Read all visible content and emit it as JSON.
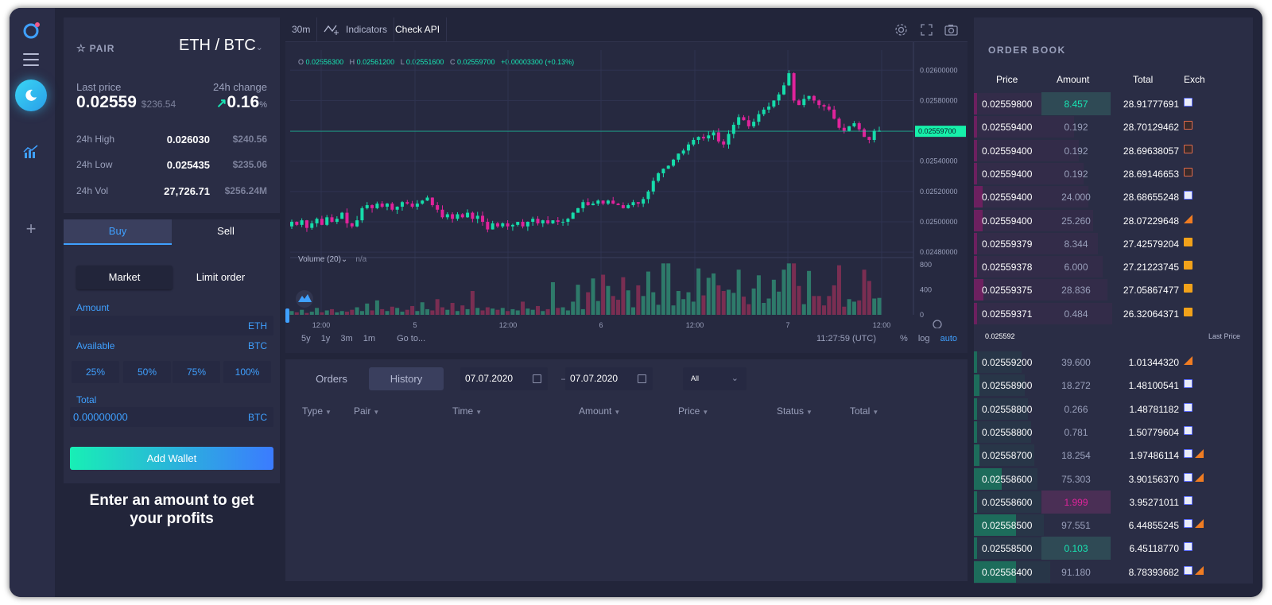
{
  "app": {
    "icons": {
      "logo": "circle-logo-icon",
      "menu": "hamburger-icon",
      "active": "moon-icon",
      "chart": "bar-chart-icon",
      "add": "plus-icon"
    }
  },
  "pair_panel": {
    "pair_label": "PAIR",
    "pair_name": "ETH / BTC",
    "last_price_label": "Last price",
    "last_price": "0.02559",
    "last_price_usd": "$236.54",
    "change_label": "24h change",
    "change_value": "0.16",
    "change_unit": "%",
    "stats": [
      {
        "label": "24h High",
        "value": "0.026030",
        "usd": "$240.56"
      },
      {
        "label": "24h Low",
        "value": "0.025435",
        "usd": "$235.06"
      },
      {
        "label": "24h Vol",
        "value": "27,726.71",
        "usd": "$256.24M"
      }
    ]
  },
  "order_form": {
    "tab_buy": "Buy",
    "tab_sell": "Sell",
    "market": "Market",
    "limit": "Limit order",
    "amount_label": "Amount",
    "amount_unit": "ETH",
    "available_label": "Available",
    "available_unit": "BTC",
    "percents": [
      "25%",
      "50%",
      "75%",
      "100%"
    ],
    "total_label": "Total",
    "total_value": "0.00000000",
    "total_unit": "BTC",
    "add_wallet": "Add Wallet"
  },
  "promo": {
    "line1": "Enter an amount to get",
    "line2": "your profits"
  },
  "chart_toolbar": {
    "interval": "30m",
    "indicators": "Indicators",
    "check_api": "Check API",
    "icons": [
      "settings-icon",
      "fullscreen-icon",
      "camera-icon"
    ]
  },
  "ohlc": {
    "o_label": "O",
    "o": "0.02556300",
    "h_label": "H",
    "h": "0.02561200",
    "l_label": "L",
    "l": "0.02551600",
    "c_label": "C",
    "c": "0.02559700",
    "change": "+0.00003300 (+0.13%)"
  },
  "chart_footer": {
    "ranges": [
      "5y",
      "1y",
      "3m",
      "1m"
    ],
    "goto": "Go to...",
    "time": "11:27:59 (UTC)",
    "scale_pct": "%",
    "scale_log": "log",
    "scale_auto": "auto"
  },
  "volume": {
    "label": "Volume (20)",
    "value": "n/a"
  },
  "chart_data": {
    "type": "candlestick",
    "price_axis": {
      "ticks": [
        "0.02600000",
        "0.02580000",
        "0.02560000",
        "0.02540000",
        "0.02520000",
        "0.02500000",
        "0.02480000"
      ],
      "ylim": [
        0.02478,
        0.02608
      ]
    },
    "volume_axis": {
      "ticks": [
        "800",
        "400",
        "0"
      ]
    },
    "x_ticks": [
      "12:00",
      "5",
      "12:00",
      "6",
      "12:00",
      "7",
      "12:00"
    ],
    "current_price": "0.02559700",
    "close": [
      0.025,
      0.02498,
      0.02501,
      0.02496,
      0.02499,
      0.02502,
      0.02498,
      0.02503,
      0.025,
      0.02502,
      0.02506,
      0.02499,
      0.02497,
      0.02501,
      0.02509,
      0.02511,
      0.02509,
      0.02512,
      0.0251,
      0.02512,
      0.02508,
      0.0251,
      0.02513,
      0.02512,
      0.0251,
      0.02512,
      0.02514,
      0.02516,
      0.02511,
      0.02508,
      0.02503,
      0.02505,
      0.02502,
      0.02505,
      0.02503,
      0.02506,
      0.02502,
      0.02504,
      0.025,
      0.02495,
      0.02499,
      0.02497,
      0.02499,
      0.02497,
      0.02498,
      0.025,
      0.02497,
      0.025,
      0.02502,
      0.02499,
      0.02501,
      0.02499,
      0.02501,
      0.025,
      0.025,
      0.02502,
      0.02506,
      0.02509,
      0.02513,
      0.02511,
      0.02512,
      0.02514,
      0.02512,
      0.02514,
      0.02512,
      0.02511,
      0.02509,
      0.02511,
      0.02513,
      0.02512,
      0.02515,
      0.0252,
      0.02527,
      0.02532,
      0.02535,
      0.02537,
      0.02541,
      0.02545,
      0.02547,
      0.02551,
      0.02554,
      0.02556,
      0.02555,
      0.02557,
      0.02559,
      0.02553,
      0.02551,
      0.02558,
      0.02564,
      0.02569,
      0.02567,
      0.02563,
      0.02566,
      0.02571,
      0.02574,
      0.02576,
      0.0258,
      0.02584,
      0.0259,
      0.02598,
      0.0258,
      0.02577,
      0.02581,
      0.02583,
      0.0258,
      0.02577,
      0.02576,
      0.02574,
      0.02568,
      0.02562,
      0.0256,
      0.02563,
      0.02565,
      0.02561,
      0.02556,
      0.02554,
      0.0256,
      0.0256
    ],
    "volume": [
      60,
      40,
      80,
      30,
      50,
      110,
      40,
      70,
      90,
      40,
      60,
      50,
      80,
      120,
      60,
      180,
      70,
      230,
      90,
      60,
      130,
      110,
      50,
      80,
      140,
      60,
      200,
      90,
      70,
      250,
      120,
      80,
      190,
      60,
      150,
      90,
      380,
      110,
      70,
      120,
      100,
      80,
      110,
      60,
      90,
      70,
      210,
      100,
      80,
      140,
      60,
      90,
      520,
      110,
      120,
      70,
      210,
      480,
      90,
      360,
      580,
      220,
      640,
      460,
      300,
      240,
      600,
      390,
      120,
      470,
      300,
      690,
      360,
      160,
      820,
      820,
      150,
      380,
      250,
      360,
      210,
      740,
      310,
      590,
      660,
      470,
      380,
      400,
      350,
      720,
      290,
      170,
      420,
      630,
      190,
      260,
      560,
      370,
      720,
      820,
      820,
      460,
      170,
      700,
      300,
      300,
      150,
      300,
      470,
      790,
      130,
      250,
      210,
      230,
      720,
      540,
      260,
      270
    ],
    "up_color": "#16dcaa",
    "down_color": "#e0239b"
  },
  "orders": {
    "tab_orders": "Orders",
    "tab_history": "History",
    "date_from": "07.07.2020",
    "date_dash": "—",
    "date_to": "07.07.2020",
    "filter": "All",
    "columns": [
      "Type",
      "Pair",
      "Time",
      "Amount",
      "Price",
      "Status",
      "Total"
    ]
  },
  "order_book": {
    "title": "ORDER BOOK",
    "headers": [
      "Price",
      "Amount",
      "Total",
      "Exch"
    ],
    "asks": [
      {
        "price": "0.02559800",
        "amount": "8.457",
        "total": "28.91777691",
        "exch": [
          "blue"
        ],
        "depth": 0.01,
        "hl": "green"
      },
      {
        "price": "0.02559400",
        "amount": "0.192",
        "total": "28.70129462",
        "exch": [
          "red"
        ],
        "depth": 0.0
      },
      {
        "price": "0.02559400",
        "amount": "0.192",
        "total": "28.69638057",
        "exch": [
          "red"
        ],
        "depth": 0.0
      },
      {
        "price": "0.02559400",
        "amount": "0.192",
        "total": "28.69146653",
        "exch": [
          "red"
        ],
        "depth": 0.0
      },
      {
        "price": "0.02559400",
        "amount": "24.000",
        "total": "28.68655248",
        "exch": [
          "blue"
        ],
        "depth": 0.03
      },
      {
        "price": "0.02559400",
        "amount": "25.260",
        "total": "28.07229648",
        "exch": [
          "tri"
        ],
        "depth": 0.03
      },
      {
        "price": "0.02559379",
        "amount": "8.344",
        "total": "27.42579204",
        "exch": [
          "orange"
        ],
        "depth": 0.0
      },
      {
        "price": "0.02559378",
        "amount": "6.000",
        "total": "27.21223745",
        "exch": [
          "orange"
        ],
        "depth": 0.0
      },
      {
        "price": "0.02559375",
        "amount": "28.836",
        "total": "27.05867477",
        "exch": [
          "orange"
        ],
        "depth": 0.035
      },
      {
        "price": "0.02559371",
        "amount": "0.484",
        "total": "26.32064371",
        "exch": [
          "orange"
        ],
        "depth": 0.0
      }
    ],
    "mid_price": "0.025592",
    "mid_label": "Last Price",
    "bids": [
      {
        "price": "0.02559200",
        "amount": "39.600",
        "total": "1.01344320",
        "exch": [
          "tri"
        ],
        "depth": 0.01
      },
      {
        "price": "0.02558900",
        "amount": "18.272",
        "total": "1.48100541",
        "exch": [
          "blue"
        ],
        "depth": 0.02
      },
      {
        "price": "0.02558800",
        "amount": "0.266",
        "total": "1.48781182",
        "exch": [
          "blue"
        ],
        "depth": 0.0
      },
      {
        "price": "0.02558800",
        "amount": "0.781",
        "total": "1.50779604",
        "exch": [
          "blue"
        ],
        "depth": 0.0
      },
      {
        "price": "0.02558700",
        "amount": "18.254",
        "total": "1.97486114",
        "exch": [
          "blue",
          "tri"
        ],
        "depth": 0.02
      },
      {
        "price": "0.02558600",
        "amount": "75.303",
        "total": "3.90156370",
        "exch": [
          "blue",
          "tri"
        ],
        "depth": 0.1
      },
      {
        "price": "0.02558600",
        "amount": "1.999",
        "total": "3.95271011",
        "exch": [
          "blue"
        ],
        "depth": 0.0,
        "hl": "pink"
      },
      {
        "price": "0.02558500",
        "amount": "97.551",
        "total": "6.44855245",
        "exch": [
          "blue",
          "tri"
        ],
        "depth": 0.15
      },
      {
        "price": "0.02558500",
        "amount": "0.103",
        "total": "6.45118770",
        "exch": [
          "blue"
        ],
        "depth": 0.0,
        "hl": "teal"
      },
      {
        "price": "0.02558400",
        "amount": "91.180",
        "total": "8.78393682",
        "exch": [
          "blue",
          "tri"
        ],
        "depth": 0.15
      }
    ]
  }
}
